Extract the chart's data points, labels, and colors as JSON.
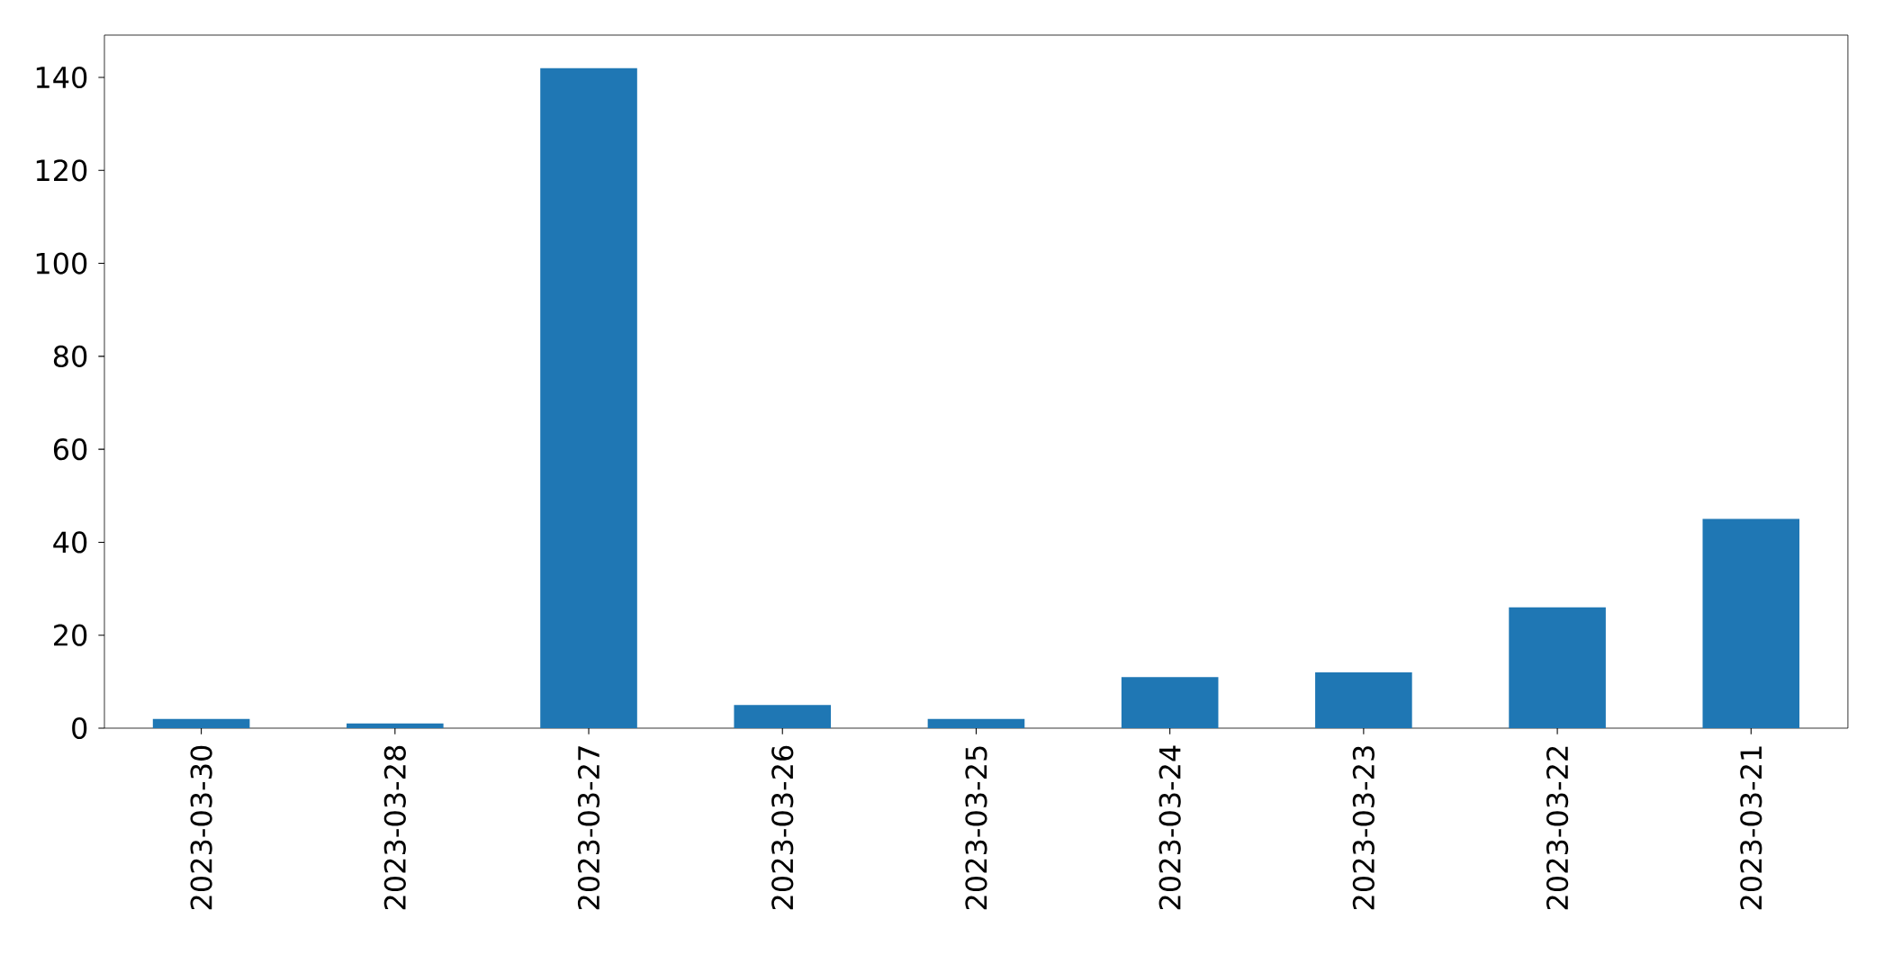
{
  "chart_data": {
    "type": "bar",
    "categories": [
      "2023-03-30",
      "2023-03-28",
      "2023-03-27",
      "2023-03-26",
      "2023-03-25",
      "2023-03-24",
      "2023-03-23",
      "2023-03-22",
      "2023-03-21"
    ],
    "values": [
      2,
      1,
      142,
      5,
      2,
      11,
      12,
      26,
      45
    ],
    "color": "#1f77b4",
    "ylim": [
      0,
      149.1
    ],
    "yticks": [
      0,
      20,
      40,
      60,
      80,
      100,
      120,
      140
    ]
  }
}
